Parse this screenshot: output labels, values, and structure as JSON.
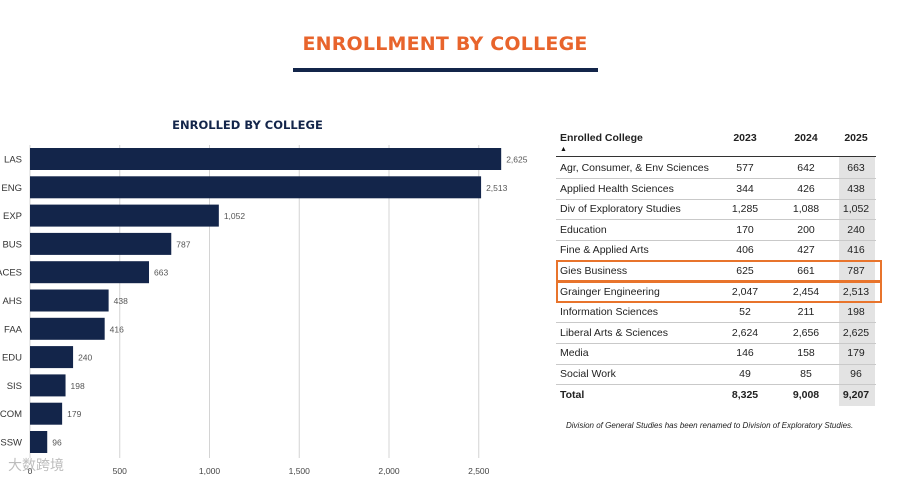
{
  "page_title": "ENROLLMENT BY COLLEGE",
  "chart_data": {
    "type": "bar",
    "orientation": "horizontal",
    "title": "ENROLLED BY COLLEGE",
    "categories": [
      "LAS",
      "ENG",
      "EXP",
      "BUS",
      "ACES",
      "AHS",
      "FAA",
      "EDU",
      "SIS",
      "COM",
      "SSW"
    ],
    "values": [
      2625,
      2513,
      1052,
      787,
      663,
      438,
      416,
      240,
      198,
      179,
      96
    ],
    "value_labels": [
      "2,625",
      "2,513",
      "1,052",
      "787",
      "663",
      "438",
      "416",
      "240",
      "198",
      "179",
      "96"
    ],
    "xlim": [
      0,
      2600
    ],
    "xticks": [
      0,
      500,
      1000,
      1500,
      2000,
      2500
    ],
    "xtick_labels": [
      "0",
      "500",
      "1,000",
      "1,500",
      "2,000",
      "2,500"
    ],
    "grid": true,
    "bar_color": "#13254a"
  },
  "table": {
    "headers": {
      "college": "Enrolled College",
      "y2023": "2023",
      "y2024": "2024",
      "y2025": "2025"
    },
    "rows": [
      {
        "name": "Agr, Consumer, & Env Sciences",
        "y2023": "577",
        "y2024": "642",
        "y2025": "663"
      },
      {
        "name": "Applied Health Sciences",
        "y2023": "344",
        "y2024": "426",
        "y2025": "438"
      },
      {
        "name": "Div of Exploratory Studies",
        "y2023": "1,285",
        "y2024": "1,088",
        "y2025": "1,052"
      },
      {
        "name": "Education",
        "y2023": "170",
        "y2024": "200",
        "y2025": "240"
      },
      {
        "name": "Fine & Applied Arts",
        "y2023": "406",
        "y2024": "427",
        "y2025": "416"
      },
      {
        "name": "Gies Business",
        "y2023": "625",
        "y2024": "661",
        "y2025": "787"
      },
      {
        "name": "Grainger Engineering",
        "y2023": "2,047",
        "y2024": "2,454",
        "y2025": "2,513"
      },
      {
        "name": "Information Sciences",
        "y2023": "52",
        "y2024": "211",
        "y2025": "198"
      },
      {
        "name": "Liberal Arts & Sciences",
        "y2023": "2,624",
        "y2024": "2,656",
        "y2025": "2,625"
      },
      {
        "name": "Media",
        "y2023": "146",
        "y2024": "158",
        "y2025": "179"
      },
      {
        "name": "Social Work",
        "y2023": "49",
        "y2024": "85",
        "y2025": "96"
      }
    ],
    "total": {
      "name": "Total",
      "y2023": "8,325",
      "y2024": "9,008",
      "y2025": "9,207"
    },
    "highlighted_rows": [
      "Gies Business",
      "Grainger Engineering"
    ],
    "sort_indicator": "▲"
  },
  "footnote": "Division of General Studies has been renamed to Division of Exploratory Studies.",
  "watermark": "大数跨境",
  "colors": {
    "accent": "#e8642c",
    "navy": "#13254a",
    "highlight_box": "#e8742c"
  }
}
